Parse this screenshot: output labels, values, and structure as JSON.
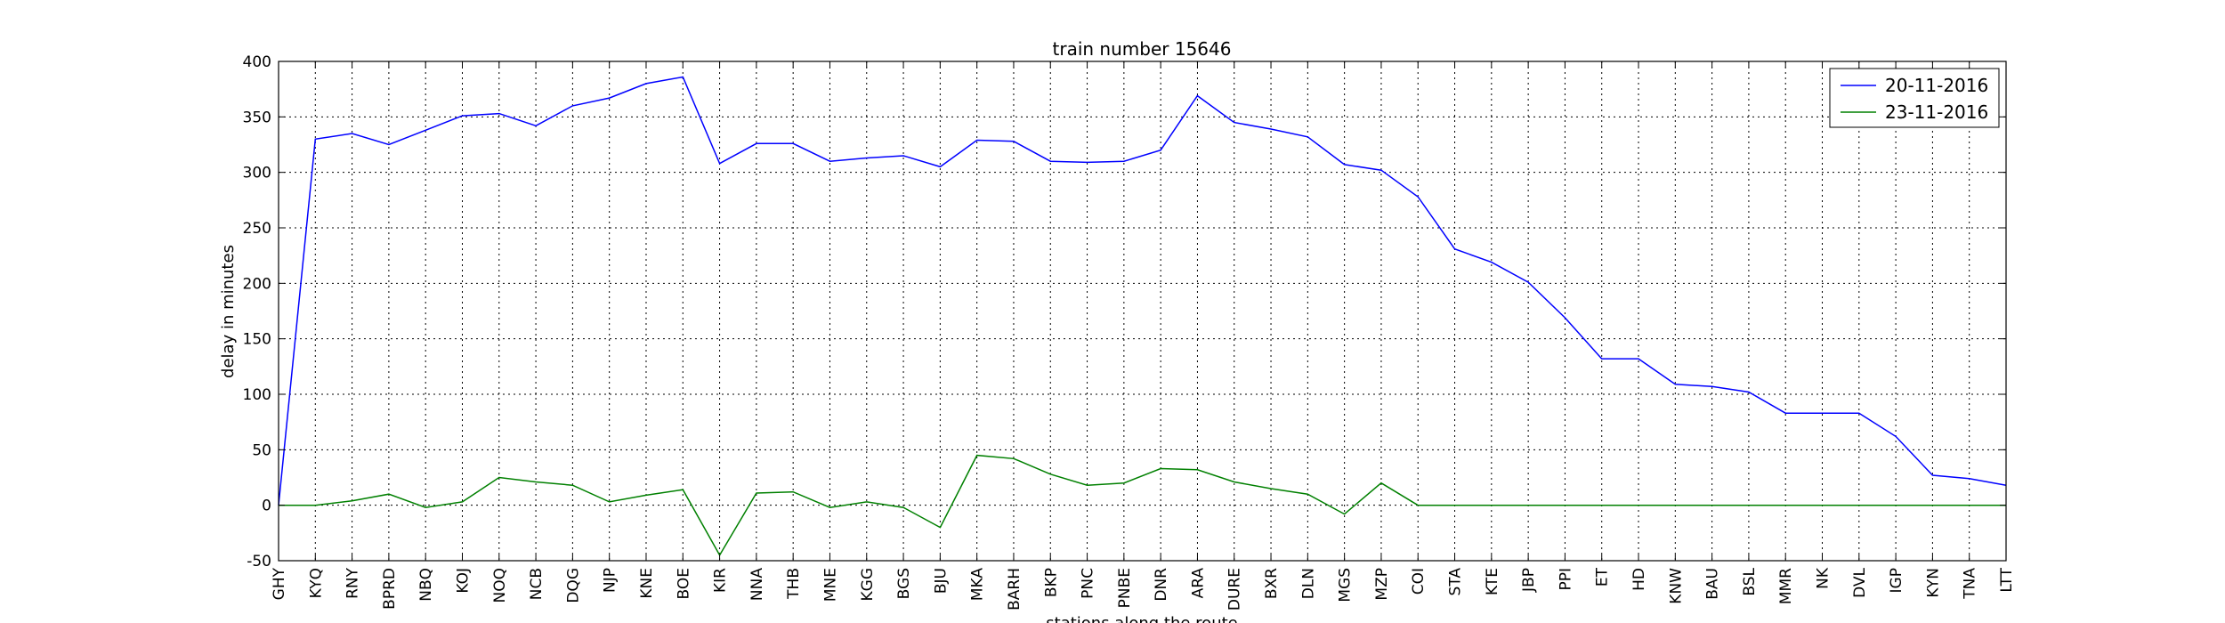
{
  "chart_data": {
    "type": "line",
    "title": "train number 15646",
    "xlabel": "stations along the route",
    "ylabel": "delay in minutes",
    "categories": [
      "GHY",
      "KYQ",
      "RNY",
      "BPRD",
      "NBQ",
      "KOJ",
      "NOQ",
      "NCB",
      "DQG",
      "NJP",
      "KNE",
      "BOE",
      "KIR",
      "NNA",
      "THB",
      "MNE",
      "KGG",
      "BGS",
      "BJU",
      "MKA",
      "BARH",
      "BKP",
      "PNC",
      "PNBE",
      "DNR",
      "ARA",
      "DURE",
      "BXR",
      "DLN",
      "MGS",
      "MZP",
      "COI",
      "STA",
      "KTE",
      "JBP",
      "PPI",
      "ET",
      "HD",
      "KNW",
      "BAU",
      "BSL",
      "MMR",
      "NK",
      "DVL",
      "IGP",
      "KYN",
      "TNA",
      "LTT"
    ],
    "yticks": [
      -50,
      0,
      50,
      100,
      150,
      200,
      250,
      300,
      350,
      400
    ],
    "ylim": [
      -50,
      400
    ],
    "grid": true,
    "legend_position": "top-right",
    "series": [
      {
        "name": "20-11-2016",
        "color": "#0000ff",
        "values": [
          0,
          330,
          335,
          325,
          338,
          351,
          353,
          342,
          360,
          367,
          380,
          386,
          308,
          326,
          326,
          310,
          313,
          315,
          305,
          329,
          328,
          310,
          309,
          310,
          320,
          369,
          345,
          339,
          332,
          307,
          302,
          278,
          231,
          219,
          201,
          169,
          132,
          132,
          109,
          107,
          102,
          83,
          83,
          83,
          62,
          27,
          24,
          18
        ]
      },
      {
        "name": "23-11-2016",
        "color": "#008000",
        "values": [
          0,
          0,
          4,
          10,
          -2,
          3,
          25,
          21,
          18,
          3,
          9,
          14,
          -45,
          11,
          12,
          -2,
          3,
          -2,
          -20,
          45,
          42,
          28,
          18,
          20,
          33,
          32,
          21,
          15,
          10,
          -8,
          20,
          0,
          0,
          0,
          0,
          0,
          0,
          0,
          0,
          0,
          0,
          0,
          0,
          0,
          0,
          0,
          0,
          0
        ]
      }
    ]
  }
}
